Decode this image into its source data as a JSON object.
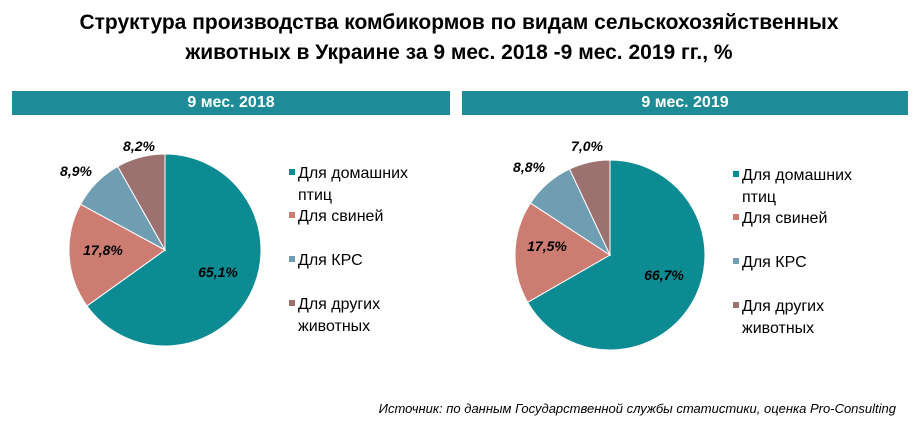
{
  "title": {
    "line1": "Структура производства комбикормов по видам сельскохозяйственных",
    "line2": "животных  в Украине за 9 мес.  2018 -9 мес.  2019 гг., %"
  },
  "source": "Источник: по данным Государственной службы статистики, оценка Pro-Consulting",
  "legend": [
    {
      "lines": [
        "Для домашних",
        "птиц"
      ],
      "color": "#0c8b93"
    },
    {
      "lines": [
        "Для свиней"
      ],
      "color": "#cd7c72"
    },
    {
      "lines": [
        "Для КРС"
      ],
      "color": "#6f9eb3"
    },
    {
      "lines": [
        "Для других",
        "животных"
      ],
      "color": "#9b7270"
    }
  ],
  "chart_data": [
    {
      "type": "pie",
      "title": "9 мес. 2018",
      "categories": [
        "Для домашних птиц",
        "Для свиней",
        "Для КРС",
        "Для других животных"
      ],
      "values": [
        65.1,
        17.8,
        8.9,
        8.2
      ],
      "labels": [
        "65,1%",
        "17,8%",
        "8,9%",
        "8,2%"
      ],
      "colors": [
        "#0c8b93",
        "#cd7c72",
        "#6f9eb3",
        "#9b7270"
      ]
    },
    {
      "type": "pie",
      "title": "9 мес. 2019",
      "categories": [
        "Для домашних птиц",
        "Для свиней",
        "Для КРС",
        "Для других животных"
      ],
      "values": [
        66.7,
        17.5,
        8.8,
        7.0
      ],
      "labels": [
        "66,7%",
        "17,5%",
        "8,8%",
        "7,0%"
      ],
      "colors": [
        "#0c8b93",
        "#cd7c72",
        "#6f9eb3",
        "#9b7270"
      ]
    }
  ]
}
